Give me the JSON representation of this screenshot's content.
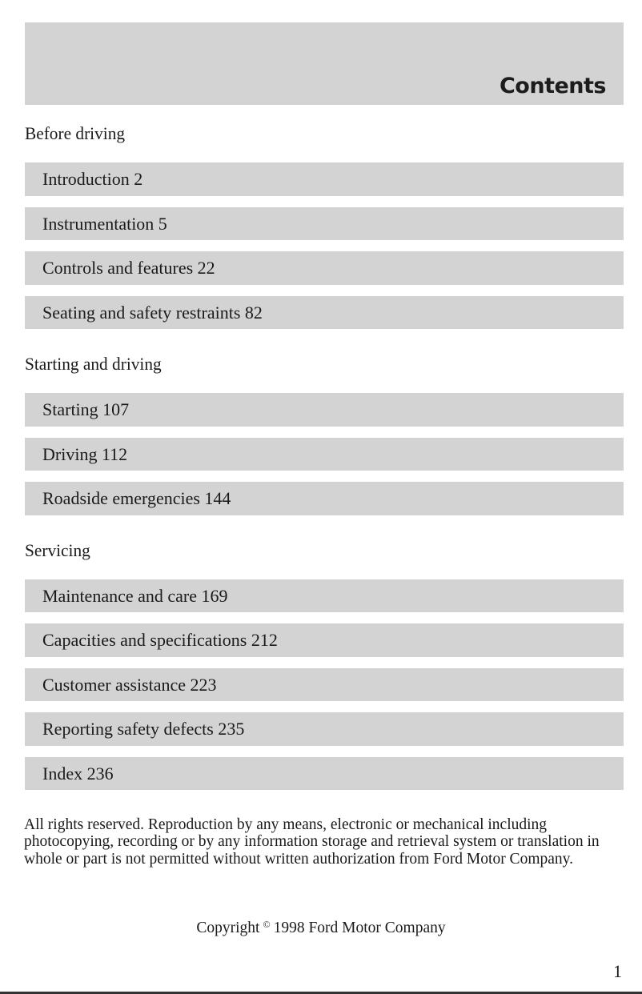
{
  "header": {
    "title": "Contents"
  },
  "sections": [
    {
      "title": "Before driving",
      "items": [
        {
          "label": "Introduction 2"
        },
        {
          "label": "Instrumentation 5"
        },
        {
          "label": "Controls and features 22"
        },
        {
          "label": "Seating and safety restraints 82"
        }
      ]
    },
    {
      "title": "Starting and driving",
      "items": [
        {
          "label": "Starting 107"
        },
        {
          "label": "Driving 112"
        },
        {
          "label": "Roadside emergencies 144"
        }
      ]
    },
    {
      "title": "Servicing",
      "items": [
        {
          "label": "Maintenance and care 169"
        },
        {
          "label": "Capacities and specifications 212"
        },
        {
          "label": "Customer assistance 223"
        },
        {
          "label": "Reporting safety defects 235"
        },
        {
          "label": "Index 236"
        }
      ]
    }
  ],
  "notice": "All rights reserved. Reproduction by any means, electronic or mechanical including photocopying, recording or by any information storage and retrieval system or translation in whole or part is not permitted without written authorization from Ford Motor Company.",
  "copyright": {
    "prefix": "Copyright",
    "symbol": "©",
    "text": "1998 Ford Motor Company"
  },
  "page_number": "1",
  "colors": {
    "band": "#d3d3d3",
    "text": "#1a1a1a"
  }
}
